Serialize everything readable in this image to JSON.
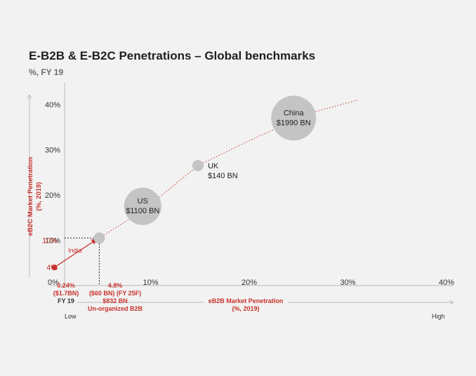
{
  "title": "E-B2B & E-B2C Penetrations – Global benchmarks",
  "subtitle": "%, FY 19",
  "colors": {
    "accent": "#c8322c",
    "bubble": "#c4c4c4",
    "text": "#333333",
    "axis": "#bbbbbb"
  },
  "chart_data": {
    "type": "scatter",
    "xlabel": "eB2B Market Penetration\n(%, 2019)",
    "ylabel": "eB2C Market Penetration\n(%, 2019)",
    "xlim": [
      0,
      40
    ],
    "ylim": [
      0,
      40
    ],
    "x_ticks": [
      "0%",
      "10%",
      "20%",
      "30%",
      "40%"
    ],
    "y_ticks": [
      "0%",
      "10%",
      "20%",
      "30%",
      "40%"
    ],
    "y_ticks_highlight": [
      "4%",
      "10%"
    ],
    "x_low_label": "Low",
    "x_high_label": "High",
    "points": [
      {
        "name": "India",
        "x": 0.24,
        "y": 4,
        "kind": "dot"
      },
      {
        "name": "India FY 25F",
        "x": 4.8,
        "y": 10.5,
        "kind": "small"
      },
      {
        "name": "US",
        "value_label": "$1100 BN",
        "x": 9.2,
        "y": 17.5,
        "kind": "bubble",
        "size": 1100
      },
      {
        "name": "UK",
        "value_label": "$140 BN",
        "x": 14.8,
        "y": 26.5,
        "kind": "small"
      },
      {
        "name": "China",
        "value_label": "$1990 BN",
        "x": 24.5,
        "y": 37,
        "kind": "bubble",
        "size": 1990
      }
    ],
    "trend_line": [
      [
        0.24,
        4
      ],
      [
        4.8,
        10.5
      ],
      [
        9.2,
        16.5
      ],
      [
        14.8,
        26.5
      ],
      [
        20,
        32
      ],
      [
        26,
        38
      ],
      [
        31,
        41
      ]
    ],
    "arrow_label": "India",
    "annotations": {
      "india_now": [
        "0.24%",
        "($1.7BN)",
        "FY 19"
      ],
      "india_future": [
        "4.8%",
        "($60 BN) (FY 25F)",
        "$832 BN",
        "Un-organized B2B"
      ]
    }
  }
}
